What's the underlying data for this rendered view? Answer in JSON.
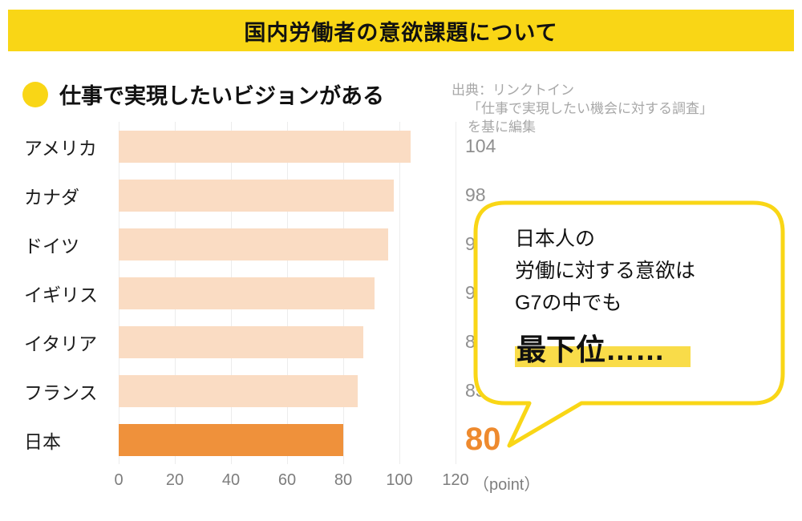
{
  "banner": {
    "title": "国内労働者の意欲課題について"
  },
  "legend": {
    "label": "仕事で実現したいビジョンがある"
  },
  "source": {
    "lines": [
      "出典：リンクトイン",
      "「仕事で実現したい機会に対する調査」",
      "を基に編集"
    ]
  },
  "chart_data": {
    "type": "bar",
    "orientation": "horizontal",
    "title": "仕事で実現したいビジョンがある",
    "categories": [
      "アメリカ",
      "カナダ",
      "ドイツ",
      "イギリス",
      "イタリア",
      "フランス",
      "日本"
    ],
    "values": [
      104,
      98,
      96,
      91,
      87,
      85,
      80
    ],
    "highlight_index": 6,
    "xlim": [
      0,
      120
    ],
    "ticks": [
      "0",
      "20",
      "40",
      "60",
      "80",
      "100",
      "120"
    ],
    "unit_label": "（point）",
    "grid": true
  },
  "bubble": {
    "lines": [
      "日本人の",
      "労働に対する意欲は",
      "G7の中でも"
    ],
    "emphasis": "最下位……"
  },
  "colors": {
    "accent_yellow": "#f9d616",
    "bar": "#fadcc3",
    "bar_highlight": "#ef913b",
    "value_text": "#8f8f8f",
    "value_highlight_text": "#ee8a2e",
    "axis_text": "#7d7d7d",
    "source_text": "#a8a8a8",
    "marker_highlight": "#f9dc49",
    "gridline": "#ececec"
  }
}
